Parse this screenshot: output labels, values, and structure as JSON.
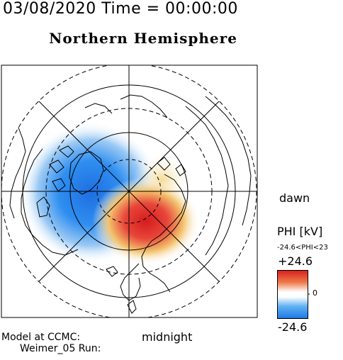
{
  "header": {
    "datetime": "03/08/2020 Time = 00:00:00",
    "title": "Northern Hemisphere"
  },
  "map": {
    "projection": "polar",
    "hemisphere": "north",
    "dawn_label": "dawn",
    "midnight_label": "midnight",
    "colors": {
      "negative": "#1e78e6",
      "positive": "#d81e1e",
      "neutral": "#ffffff",
      "coastline": "#000000",
      "grid": "#000000"
    }
  },
  "colorbar": {
    "title": "PHI [kV]",
    "range_label": "-24.6<PHI<23",
    "max_label": "+24.6",
    "zero_label": "0",
    "min_label": "-24.6",
    "max_value": 24.6,
    "min_value": -24.6
  },
  "footer": {
    "line1": "Model at CCMC:",
    "line2": "Weimer_05 Run:"
  }
}
